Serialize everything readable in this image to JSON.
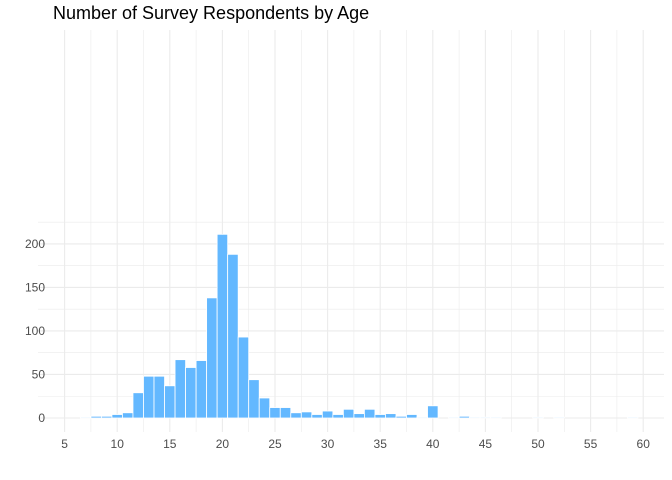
{
  "chart_data": {
    "type": "bar",
    "title": "Number of Survey Respondents by Age",
    "xlabel": "",
    "ylabel": "",
    "xlim": [
      5,
      61
    ],
    "ylim": [
      0,
      220
    ],
    "x_ticks": [
      5,
      10,
      15,
      20,
      25,
      30,
      35,
      40,
      45,
      50,
      55,
      60
    ],
    "y_ticks": [
      0,
      50,
      100,
      150,
      200
    ],
    "grid": true,
    "legend": "none",
    "bar_color": "#63b8ff",
    "grid_color": "#ebebeb",
    "x": [
      7,
      8,
      9,
      10,
      11,
      12,
      13,
      14,
      15,
      16,
      17,
      18,
      19,
      20,
      21,
      22,
      23,
      24,
      25,
      26,
      27,
      28,
      29,
      30,
      31,
      32,
      33,
      34,
      35,
      36,
      37,
      38,
      39,
      40,
      42,
      43,
      44,
      45,
      46,
      50,
      52,
      59
    ],
    "values": [
      1,
      2,
      2,
      4,
      6,
      29,
      48,
      48,
      37,
      67,
      58,
      66,
      138,
      211,
      188,
      93,
      44,
      23,
      12,
      12,
      6,
      7,
      4,
      8,
      4,
      10,
      5,
      10,
      4,
      5,
      2,
      4,
      1,
      14,
      1,
      2,
      1,
      1,
      1,
      1,
      1,
      1
    ]
  }
}
